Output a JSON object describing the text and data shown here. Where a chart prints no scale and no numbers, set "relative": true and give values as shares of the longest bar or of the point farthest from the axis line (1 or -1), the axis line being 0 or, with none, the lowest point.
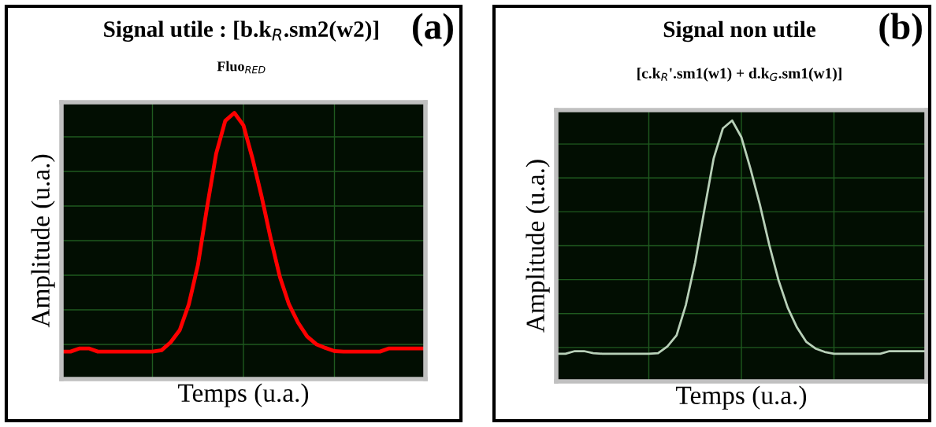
{
  "chart_data": [
    {
      "type": "line",
      "title": "Signal utile : [b.k$_{R}$.sm2(w2)]",
      "subtitle": "Fluo$_{RED}$",
      "xlabel": "Temps (u.a.)",
      "ylabel": "Amplitude (u.a.)",
      "annotations": [
        "(a)"
      ],
      "relative": true,
      "grid": true,
      "tick_labels": false,
      "categories": [
        null,
        null,
        null,
        null,
        null,
        null,
        null,
        null,
        null,
        null,
        null,
        null,
        null,
        null,
        null,
        null,
        null,
        null,
        null,
        null,
        null,
        null,
        null,
        null,
        null,
        null,
        null,
        null,
        null,
        null,
        null,
        null,
        null,
        null,
        null,
        null,
        null,
        null,
        null,
        null,
        null
      ],
      "series": [
        {
          "color": "#ff0000",
          "values": [
            0.103,
            0.103,
            0.115,
            0.115,
            0.103,
            0.103,
            0.103,
            0.103,
            0.103,
            0.103,
            0.103,
            0.108,
            0.138,
            0.184,
            0.281,
            0.429,
            0.645,
            0.847,
            0.97,
            1.0,
            0.953,
            0.828,
            0.685,
            0.527,
            0.384,
            0.281,
            0.212,
            0.16,
            0.131,
            0.117,
            0.105,
            0.103,
            0.103,
            0.103,
            0.103,
            0.103,
            0.115,
            0.115,
            0.115,
            0.115,
            0.115
          ]
        }
      ]
    },
    {
      "type": "line",
      "title": "Signal non utile",
      "subtitle": "[c.k$_{R}$'.sm1(w1) + d.k$_{G}$.sm1(w1)]",
      "xlabel": "Temps (u.a.)",
      "ylabel": "Amplitude (u.a.)",
      "annotations": [
        "(b)"
      ],
      "relative": true,
      "grid": true,
      "tick_labels": false,
      "categories": [
        null,
        null,
        null,
        null,
        null,
        null,
        null,
        null,
        null,
        null,
        null,
        null,
        null,
        null,
        null,
        null,
        null,
        null,
        null,
        null,
        null,
        null,
        null,
        null,
        null,
        null,
        null,
        null,
        null,
        null,
        null,
        null,
        null,
        null,
        null,
        null,
        null,
        null,
        null,
        null,
        null
      ],
      "series": [
        {
          "color": "#b8d0b8",
          "values": [
            0.106,
            0.106,
            0.116,
            0.116,
            0.108,
            0.106,
            0.106,
            0.106,
            0.106,
            0.106,
            0.106,
            0.108,
            0.134,
            0.177,
            0.293,
            0.455,
            0.657,
            0.854,
            0.97,
            1.0,
            0.936,
            0.813,
            0.677,
            0.525,
            0.389,
            0.283,
            0.207,
            0.152,
            0.126,
            0.113,
            0.106,
            0.106,
            0.106,
            0.106,
            0.106,
            0.106,
            0.116,
            0.116,
            0.116,
            0.116,
            0.116
          ]
        }
      ]
    }
  ]
}
